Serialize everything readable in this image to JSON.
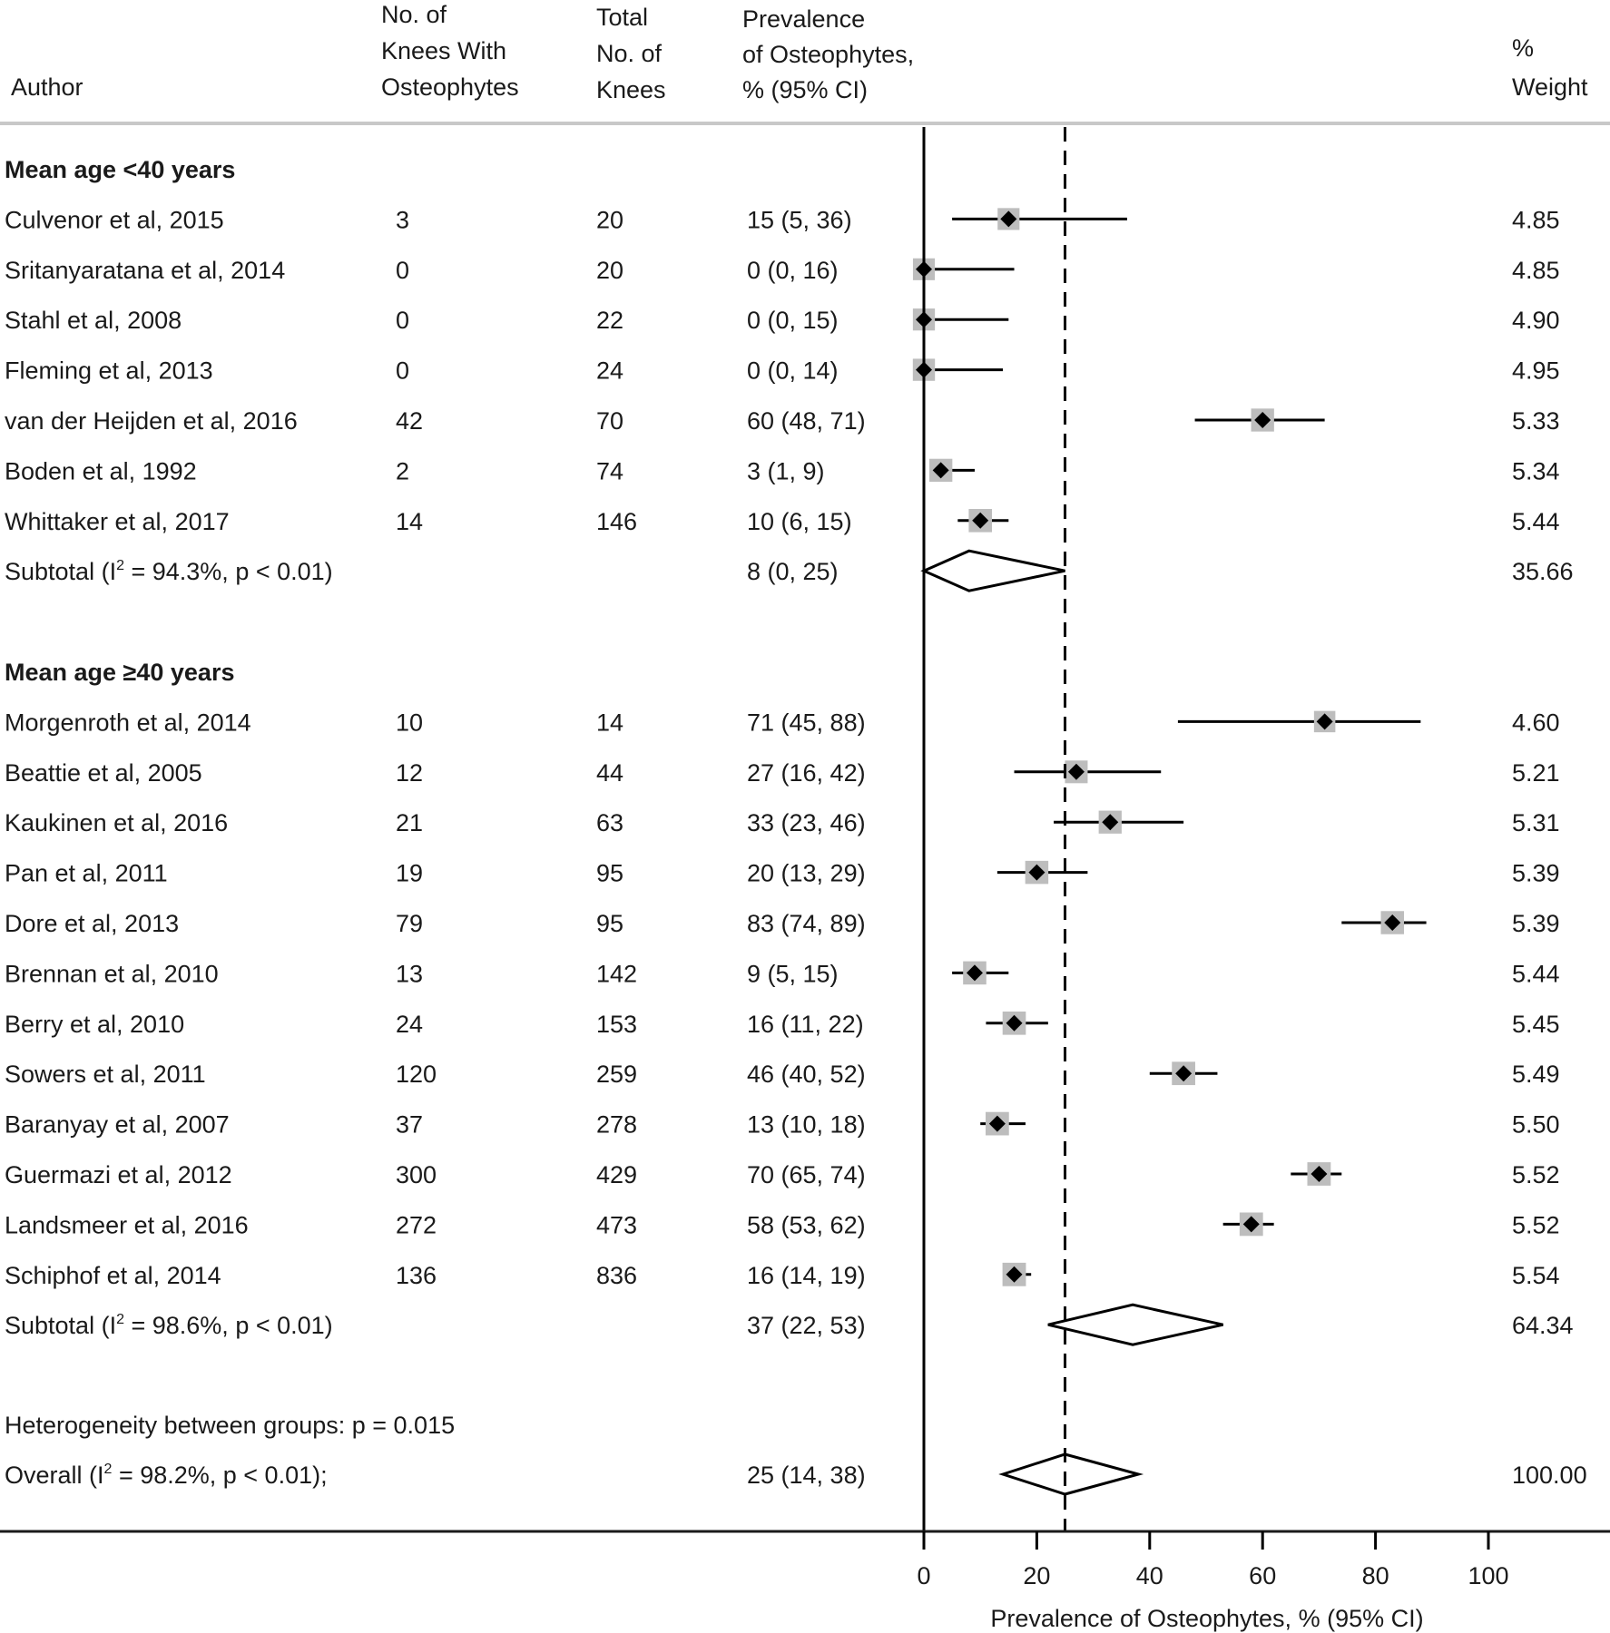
{
  "chart_data": {
    "type": "forest",
    "headers": {
      "author": "Author",
      "with_osteo": [
        "No. of",
        "Knees With",
        "Osteophytes"
      ],
      "total": [
        "Total",
        "No. of",
        "Knees"
      ],
      "prevalence": [
        "Prevalence",
        "of Osteophytes,",
        "% (95% CI)"
      ],
      "weight": [
        "%",
        "Weight"
      ]
    },
    "x_axis": {
      "label": "Prevalence of Osteophytes, % (95% CI)",
      "ticks": [
        0,
        20,
        40,
        60,
        80,
        100
      ],
      "xlim": [
        0,
        100
      ],
      "reference_line": 25
    },
    "groups": [
      {
        "title": "Mean age <40 years",
        "studies": [
          {
            "author": "Culvenor et al, 2015",
            "events": "3",
            "total": "20",
            "ci_text": "15 (5, 36)",
            "est": 15,
            "lo": 5,
            "hi": 36,
            "weight": "4.85"
          },
          {
            "author": "Sritanyaratana et al, 2014",
            "events": "0",
            "total": "20",
            "ci_text": "0 (0, 16)",
            "est": 0,
            "lo": 0,
            "hi": 16,
            "weight": "4.85"
          },
          {
            "author": "Stahl et al, 2008",
            "events": "0",
            "total": "22",
            "ci_text": "0 (0, 15)",
            "est": 0,
            "lo": 0,
            "hi": 15,
            "weight": "4.90"
          },
          {
            "author": "Fleming et al, 2013",
            "events": "0",
            "total": "24",
            "ci_text": "0 (0, 14)",
            "est": 0,
            "lo": 0,
            "hi": 14,
            "weight": "4.95"
          },
          {
            "author": "van der Heijden et al, 2016",
            "events": "42",
            "total": "70",
            "ci_text": "60 (48, 71)",
            "est": 60,
            "lo": 48,
            "hi": 71,
            "weight": "5.33"
          },
          {
            "author": "Boden et al, 1992",
            "events": "2",
            "total": "74",
            "ci_text": "3 (1, 9)",
            "est": 3,
            "lo": 1,
            "hi": 9,
            "weight": "5.34"
          },
          {
            "author": "Whittaker et al, 2017",
            "events": "14",
            "total": "146",
            "ci_text": "10 (6, 15)",
            "est": 10,
            "lo": 6,
            "hi": 15,
            "weight": "5.44"
          }
        ],
        "subtotal": {
          "label": "Subtotal  (I",
          "sup": "2",
          "label_rest": " = 94.3%, p < 0.01)",
          "ci_text": "8 (0, 25)",
          "est": 8,
          "lo": 0,
          "hi": 25,
          "weight": "35.66"
        }
      },
      {
        "title": "Mean age ≥40 years",
        "studies": [
          {
            "author": "Morgenroth et al, 2014",
            "events": "10",
            "total": "14",
            "ci_text": "71 (45, 88)",
            "est": 71,
            "lo": 45,
            "hi": 88,
            "weight": "4.60"
          },
          {
            "author": "Beattie et al, 2005",
            "events": "12",
            "total": "44",
            "ci_text": "27 (16, 42)",
            "est": 27,
            "lo": 16,
            "hi": 42,
            "weight": "5.21"
          },
          {
            "author": "Kaukinen et al, 2016",
            "events": "21",
            "total": "63",
            "ci_text": "33 (23, 46)",
            "est": 33,
            "lo": 23,
            "hi": 46,
            "weight": "5.31"
          },
          {
            "author": "Pan et al, 2011",
            "events": "19",
            "total": "95",
            "ci_text": "20 (13, 29)",
            "est": 20,
            "lo": 13,
            "hi": 29,
            "weight": "5.39"
          },
          {
            "author": "Dore et al, 2013",
            "events": "79",
            "total": "95",
            "ci_text": "83 (74, 89)",
            "est": 83,
            "lo": 74,
            "hi": 89,
            "weight": "5.39"
          },
          {
            "author": "Brennan et al, 2010",
            "events": "13",
            "total": "142",
            "ci_text": "9 (5, 15)",
            "est": 9,
            "lo": 5,
            "hi": 15,
            "weight": "5.44"
          },
          {
            "author": "Berry et al, 2010",
            "events": "24",
            "total": "153",
            "ci_text": "16 (11, 22)",
            "est": 16,
            "lo": 11,
            "hi": 22,
            "weight": "5.45"
          },
          {
            "author": "Sowers et al, 2011",
            "events": "120",
            "total": "259",
            "ci_text": "46 (40, 52)",
            "est": 46,
            "lo": 40,
            "hi": 52,
            "weight": "5.49"
          },
          {
            "author": "Baranyay et al, 2007",
            "events": "37",
            "total": "278",
            "ci_text": "13 (10, 18)",
            "est": 13,
            "lo": 10,
            "hi": 18,
            "weight": "5.50"
          },
          {
            "author": "Guermazi et al, 2012",
            "events": "300",
            "total": "429",
            "ci_text": "70 (65, 74)",
            "est": 70,
            "lo": 65,
            "hi": 74,
            "weight": "5.52"
          },
          {
            "author": "Landsmeer et al, 2016",
            "events": "272",
            "total": "473",
            "ci_text": "58 (53, 62)",
            "est": 58,
            "lo": 53,
            "hi": 62,
            "weight": "5.52"
          },
          {
            "author": "Schiphof et al, 2014",
            "events": "136",
            "total": "836",
            "ci_text": "16 (14, 19)",
            "est": 16,
            "lo": 14,
            "hi": 19,
            "weight": "5.54"
          }
        ],
        "subtotal": {
          "label": "Subtotal  (I",
          "sup": "2",
          "label_rest": " = 98.6%, p < 0.01)",
          "ci_text": "37 (22, 53)",
          "est": 37,
          "lo": 22,
          "hi": 53,
          "weight": "64.34"
        }
      }
    ],
    "heterogeneity": "Heterogeneity between groups: p = 0.015",
    "overall": {
      "label": "Overall  (I",
      "sup": "2",
      "label_rest": " = 98.2%, p < 0.01);",
      "ci_text": "25 (14, 38)",
      "est": 25,
      "lo": 14,
      "hi": 38,
      "weight": "100.00"
    }
  },
  "colors": {
    "text": "#1a1a1a",
    "weight_box": "#bdbdbd",
    "marker": "#000000",
    "divider": "#c8c8c8"
  }
}
